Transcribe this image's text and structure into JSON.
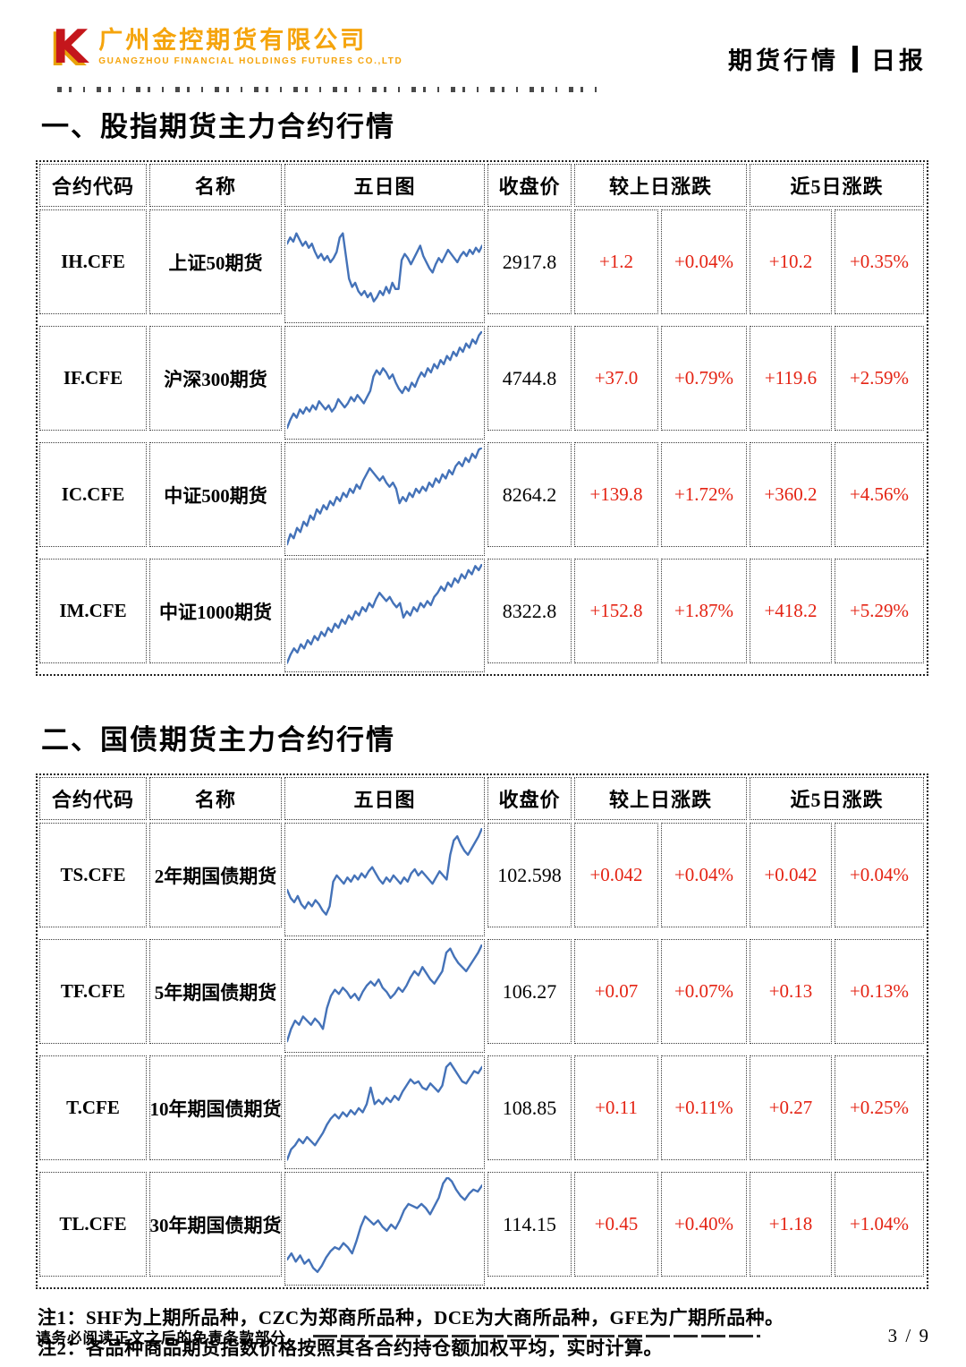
{
  "masthead": {
    "logo_mark": "K",
    "company_cn": "广州金控期货有限公司",
    "company_en": "GUANGZHOU FINANCIAL HOLDINGS FUTURES CO.,LTD",
    "report_type": "期货行情",
    "report_period": "日报"
  },
  "table_headers": {
    "code": "合约代码",
    "name": "名称",
    "chart": "五日图",
    "close": "收盘价",
    "chg": "较上日涨跌",
    "chg5": "近5日涨跌"
  },
  "sections": [
    {
      "title": "一、股指期货主力合约行情",
      "table_name": "stock-index-table",
      "rows": [
        {
          "code": "IH.CFE",
          "name": "上证50期货",
          "close": "2917.8",
          "chg": "+1.2",
          "chg_pct": "+0.04%",
          "chg5": "+10.2",
          "chg5_pct": "+0.35%",
          "sparkline": [
            72,
            78,
            74,
            82,
            76,
            70,
            74,
            68,
            72,
            64,
            58,
            62,
            56,
            60,
            54,
            58,
            64,
            78,
            82,
            60,
            38,
            30,
            34,
            26,
            22,
            26,
            20,
            24,
            16,
            20,
            26,
            22,
            30,
            24,
            34,
            28,
            28,
            56,
            62,
            58,
            52,
            58,
            64,
            70,
            60,
            54,
            48,
            44,
            52,
            58,
            54,
            60,
            66,
            62,
            58,
            54,
            60,
            64,
            60,
            66,
            62,
            68,
            64,
            70
          ]
        },
        {
          "code": "IF.CFE",
          "name": "沪深300期货",
          "close": "4744.8",
          "chg": "+37.0",
          "chg_pct": "+0.79%",
          "chg5": "+119.6",
          "chg5_pct": "+2.59%",
          "sparkline": [
            6,
            14,
            20,
            16,
            24,
            20,
            26,
            22,
            28,
            24,
            32,
            28,
            24,
            28,
            22,
            26,
            34,
            30,
            26,
            30,
            36,
            32,
            38,
            34,
            30,
            36,
            42,
            56,
            62,
            58,
            64,
            60,
            54,
            58,
            50,
            44,
            40,
            46,
            42,
            50,
            46,
            54,
            60,
            56,
            64,
            60,
            68,
            64,
            72,
            68,
            76,
            72,
            80,
            76,
            84,
            80,
            88,
            84,
            92,
            88,
            96,
            100
          ]
        },
        {
          "code": "IC.CFE",
          "name": "中证500期货",
          "close": "8264.2",
          "chg": "+139.8",
          "chg_pct": "+1.72%",
          "chg5": "+360.2",
          "chg5_pct": "+4.56%",
          "sparkline": [
            6,
            16,
            12,
            22,
            18,
            28,
            24,
            34,
            30,
            40,
            36,
            44,
            40,
            48,
            44,
            52,
            48,
            56,
            52,
            60,
            56,
            64,
            60,
            68,
            74,
            80,
            76,
            72,
            68,
            72,
            66,
            62,
            66,
            60,
            46,
            52,
            48,
            56,
            52,
            60,
            56,
            62,
            58,
            66,
            62,
            70,
            66,
            74,
            70,
            78,
            74,
            82,
            86,
            82,
            90,
            86,
            94,
            90,
            98,
            100
          ]
        },
        {
          "code": "IM.CFE",
          "name": "中证1000期货",
          "close": "8322.8",
          "chg": "+152.8",
          "chg_pct": "+1.87%",
          "chg5": "+418.2",
          "chg5_pct": "+5.29%",
          "sparkline": [
            4,
            12,
            18,
            14,
            22,
            18,
            26,
            22,
            30,
            26,
            34,
            30,
            38,
            34,
            42,
            38,
            46,
            42,
            50,
            46,
            54,
            50,
            58,
            54,
            62,
            58,
            66,
            72,
            68,
            64,
            68,
            62,
            58,
            62,
            48,
            54,
            50,
            58,
            54,
            62,
            58,
            64,
            60,
            68,
            72,
            78,
            74,
            82,
            78,
            86,
            82,
            90,
            86,
            94,
            90,
            98,
            94,
            100
          ]
        }
      ]
    },
    {
      "title": "二、国债期货主力合约行情",
      "table_name": "bond-table",
      "rows": [
        {
          "code": "TS.CFE",
          "name": "2年期国债期货",
          "close": "102.598",
          "chg": "+0.042",
          "chg_pct": "+0.04%",
          "chg5": "+0.042",
          "chg5_pct": "+0.04%",
          "sparkline": [
            40,
            32,
            28,
            34,
            26,
            22,
            28,
            24,
            30,
            26,
            20,
            16,
            24,
            48,
            54,
            50,
            46,
            52,
            48,
            54,
            50,
            56,
            52,
            58,
            62,
            56,
            50,
            46,
            52,
            48,
            54,
            50,
            46,
            52,
            48,
            56,
            60,
            54,
            58,
            54,
            50,
            46,
            52,
            58,
            54,
            50,
            74,
            88,
            92,
            84,
            78,
            74,
            80,
            86,
            92,
            100
          ]
        },
        {
          "code": "TF.CFE",
          "name": "5年期国债期货",
          "close": "106.27",
          "chg": "+0.07",
          "chg_pct": "+0.07%",
          "chg5": "+0.13",
          "chg5_pct": "+0.13%",
          "sparkline": [
            6,
            18,
            26,
            22,
            30,
            26,
            22,
            28,
            24,
            18,
            38,
            50,
            56,
            52,
            58,
            54,
            48,
            52,
            46,
            54,
            60,
            64,
            60,
            66,
            58,
            54,
            48,
            52,
            58,
            54,
            60,
            68,
            74,
            70,
            78,
            72,
            66,
            62,
            68,
            74,
            92,
            96,
            88,
            82,
            78,
            74,
            80,
            86,
            92,
            100
          ]
        },
        {
          "code": "T.CFE",
          "name": "10年期国债期货",
          "close": "108.85",
          "chg": "+0.11",
          "chg_pct": "+0.11%",
          "chg5": "+0.27",
          "chg5_pct": "+0.25%",
          "sparkline": [
            4,
            14,
            18,
            24,
            20,
            26,
            22,
            18,
            24,
            30,
            38,
            44,
            48,
            44,
            50,
            46,
            52,
            48,
            54,
            50,
            58,
            74,
            58,
            62,
            58,
            64,
            60,
            66,
            62,
            70,
            76,
            82,
            78,
            80,
            74,
            72,
            78,
            74,
            70,
            76,
            94,
            98,
            92,
            86,
            80,
            78,
            84,
            90,
            88,
            94
          ]
        },
        {
          "code": "TL.CFE",
          "name": "30年期国债期货",
          "close": "114.15",
          "chg": "+0.45",
          "chg_pct": "+0.40%",
          "chg5": "+1.18",
          "chg5_pct": "+1.04%",
          "sparkline": [
            20,
            26,
            18,
            24,
            16,
            20,
            12,
            8,
            14,
            22,
            28,
            32,
            30,
            36,
            32,
            26,
            38,
            52,
            62,
            58,
            54,
            58,
            52,
            48,
            54,
            50,
            58,
            68,
            74,
            72,
            70,
            74,
            70,
            64,
            72,
            80,
            94,
            100,
            96,
            88,
            82,
            78,
            84,
            88,
            86,
            92
          ]
        }
      ]
    }
  ],
  "notes": [
    "注1：SHF为上期所品种，CZC为郑商所品种，DCE为大商所品种，GFE为广期所品种。",
    "注2：各品种商品期货指数价格按照其各合约持仓额加权平均，实时计算。"
  ],
  "footer": {
    "disclaimer": "请务必阅读正文之后的免责条款部分",
    "page_indicator": "3 / 9"
  },
  "colors": {
    "up_red": "#e42313",
    "spark_blue": "#4472b8",
    "brand_gold": "#f5a40c",
    "brand_red": "#c4161c"
  }
}
